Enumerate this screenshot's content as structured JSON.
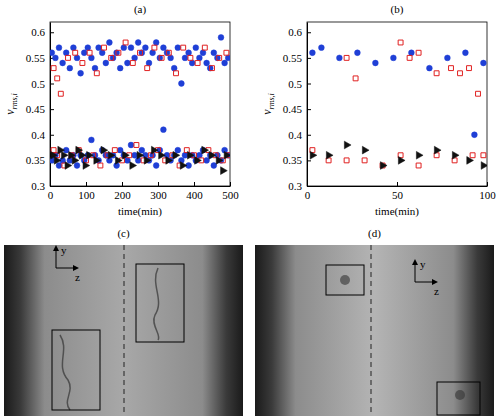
{
  "chart_data": [
    {
      "type": "scatter",
      "title": "(a)",
      "xlabel": "time(min)",
      "ylabel": "v",
      "ylabel_subscript": "rms,i",
      "xlim": [
        0,
        500
      ],
      "xticks": [
        0,
        100,
        200,
        300,
        400,
        500
      ],
      "ylim": [
        0.3,
        0.62
      ],
      "yticks": [
        0.3,
        0.35,
        0.4,
        0.45,
        0.5,
        0.55,
        0.6
      ],
      "series": [
        {
          "color": "#1f3fd6",
          "marker": "circle",
          "x": [
            5,
            15,
            25,
            35,
            45,
            55,
            65,
            75,
            85,
            95,
            105,
            115,
            125,
            135,
            145,
            155,
            165,
            175,
            185,
            195,
            205,
            215,
            225,
            235,
            245,
            255,
            265,
            275,
            285,
            295,
            305,
            315,
            325,
            335,
            345,
            355,
            365,
            375,
            385,
            395,
            405,
            415,
            425,
            435,
            445,
            455,
            465,
            475,
            485,
            495,
            5,
            15,
            25,
            35,
            45,
            55,
            65,
            75,
            85,
            95,
            105,
            115,
            125,
            135,
            145,
            155,
            165,
            175,
            185,
            195,
            205,
            215,
            225,
            235,
            245,
            255,
            265,
            275,
            285,
            295,
            305,
            315,
            325,
            335,
            345,
            355,
            365,
            375,
            385,
            395,
            405,
            415,
            425,
            435,
            445,
            455,
            465,
            475,
            485,
            495
          ],
          "values": [
            0.56,
            0.55,
            0.57,
            0.54,
            0.56,
            0.53,
            0.57,
            0.55,
            0.52,
            0.56,
            0.57,
            0.55,
            0.53,
            0.57,
            0.56,
            0.54,
            0.58,
            0.55,
            0.56,
            0.53,
            0.57,
            0.54,
            0.57,
            0.55,
            0.58,
            0.56,
            0.57,
            0.54,
            0.56,
            0.58,
            0.55,
            0.57,
            0.56,
            0.55,
            0.53,
            0.57,
            0.5,
            0.55,
            0.56,
            0.54,
            0.57,
            0.55,
            0.56,
            0.54,
            0.53,
            0.56,
            0.55,
            0.59,
            0.54,
            0.55,
            0.35,
            0.36,
            0.34,
            0.35,
            0.37,
            0.35,
            0.36,
            0.34,
            0.36,
            0.35,
            0.36,
            0.39,
            0.36,
            0.35,
            0.37,
            0.36,
            0.35,
            0.36,
            0.34,
            0.37,
            0.36,
            0.35,
            0.38,
            0.36,
            0.35,
            0.37,
            0.36,
            0.35,
            0.36,
            0.34,
            0.37,
            0.41,
            0.36,
            0.35,
            0.36,
            0.37,
            0.35,
            0.36,
            0.34,
            0.36,
            0.35,
            0.36,
            0.37,
            0.35,
            0.36,
            0.34,
            0.36,
            0.35,
            0.37,
            0.36
          ]
        },
        {
          "color": "#e02020",
          "marker": "square-open",
          "x": [
            10,
            20,
            30,
            50,
            70,
            90,
            110,
            130,
            150,
            170,
            190,
            210,
            230,
            250,
            270,
            290,
            310,
            330,
            350,
            370,
            390,
            410,
            430,
            450,
            470,
            490,
            10,
            20,
            40,
            60,
            80,
            100,
            120,
            140,
            160,
            180,
            200,
            220,
            240,
            260,
            280,
            300,
            320,
            340,
            360,
            380,
            400,
            420,
            440,
            460,
            480,
            495
          ],
          "values": [
            0.53,
            0.51,
            0.48,
            0.55,
            0.56,
            0.54,
            0.56,
            0.52,
            0.57,
            0.55,
            0.56,
            0.58,
            0.54,
            0.56,
            0.53,
            0.57,
            0.55,
            0.56,
            0.52,
            0.57,
            0.55,
            0.54,
            0.57,
            0.53,
            0.55,
            0.56,
            0.37,
            0.36,
            0.34,
            0.36,
            0.37,
            0.35,
            0.36,
            0.34,
            0.36,
            0.37,
            0.35,
            0.36,
            0.38,
            0.35,
            0.36,
            0.37,
            0.35,
            0.36,
            0.34,
            0.37,
            0.36,
            0.35,
            0.37,
            0.36,
            0.35,
            0.36
          ]
        },
        {
          "color": "#111111",
          "marker": "triangle-right",
          "x": [
            8,
            18,
            28,
            38,
            48,
            58,
            68,
            78,
            88,
            98,
            108,
            128,
            148,
            168,
            188,
            208,
            228,
            248,
            268,
            288,
            308,
            328,
            348,
            368,
            388,
            408,
            428,
            448,
            468,
            480,
            490
          ],
          "values": [
            0.36,
            0.35,
            0.37,
            0.36,
            0.34,
            0.36,
            0.35,
            0.37,
            0.36,
            0.34,
            0.36,
            0.35,
            0.37,
            0.36,
            0.35,
            0.36,
            0.34,
            0.36,
            0.35,
            0.37,
            0.36,
            0.35,
            0.36,
            0.34,
            0.36,
            0.35,
            0.37,
            0.36,
            0.35,
            0.33,
            0.36
          ]
        }
      ]
    },
    {
      "type": "scatter",
      "title": "(b)",
      "xlabel": "time(min)",
      "ylabel": "v",
      "ylabel_subscript": "rms,i",
      "xlim": [
        0,
        100
      ],
      "xticks": [
        0,
        50,
        100
      ],
      "ylim": [
        0.3,
        0.62
      ],
      "yticks": [
        0.3,
        0.35,
        0.4,
        0.45,
        0.5,
        0.55,
        0.6
      ],
      "series": [
        {
          "color": "#1f3fd6",
          "marker": "circle",
          "x": [
            3,
            8,
            18,
            28,
            38,
            48,
            58,
            68,
            78,
            88,
            98,
            93
          ],
          "values": [
            0.56,
            0.57,
            0.55,
            0.56,
            0.54,
            0.55,
            0.56,
            0.53,
            0.55,
            0.56,
            0.54,
            0.4
          ]
        },
        {
          "color": "#e02020",
          "marker": "square-open",
          "x": [
            22,
            27,
            52,
            57,
            62,
            72,
            80,
            85,
            90,
            95,
            3,
            12,
            22,
            32,
            42,
            52,
            62,
            72,
            82,
            92,
            98
          ],
          "values": [
            0.55,
            0.51,
            0.58,
            0.55,
            0.56,
            0.52,
            0.53,
            0.52,
            0.53,
            0.48,
            0.37,
            0.35,
            0.35,
            0.35,
            0.34,
            0.36,
            0.34,
            0.36,
            0.35,
            0.36,
            0.36
          ]
        },
        {
          "color": "#111111",
          "marker": "triangle-right",
          "x": [
            3,
            12,
            22,
            32,
            42,
            52,
            62,
            72,
            82,
            90,
            98
          ],
          "values": [
            0.36,
            0.36,
            0.38,
            0.37,
            0.34,
            0.35,
            0.36,
            0.37,
            0.36,
            0.35,
            0.34
          ]
        }
      ]
    }
  ],
  "images": [
    {
      "title": "(c)",
      "axis_labels": [
        "y",
        "z"
      ]
    },
    {
      "title": "(d)",
      "axis_labels": [
        "y",
        "z"
      ]
    }
  ]
}
